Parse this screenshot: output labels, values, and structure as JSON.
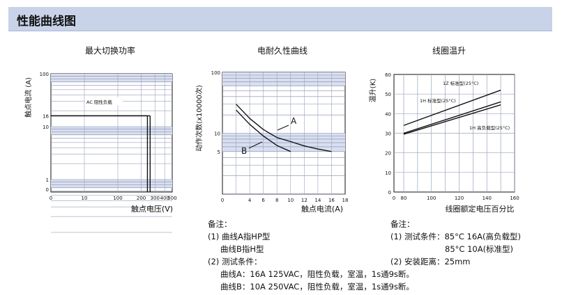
{
  "header": {
    "title": "性能曲线图"
  },
  "chart_data": [
    {
      "type": "line",
      "title": "最大切换功率",
      "xlabel": "触点电压(V)",
      "ylabel": "触点电流 (A)",
      "x_scale": "log",
      "y_scale": "log",
      "xlim": [
        0,
        500
      ],
      "ylim": [
        0,
        100
      ],
      "x_ticks": [
        "0",
        "10",
        "100",
        "200",
        "300",
        "400",
        "500"
      ],
      "y_ticks": [
        "100",
        "16",
        "10",
        "1"
      ],
      "annotation": "AC 阻性负载",
      "series": [
        {
          "points": [
            [
              0,
              16
            ],
            [
              240,
              16
            ],
            [
              240,
              0
            ]
          ]
        },
        {
          "points": [
            [
              240,
              0
            ],
            [
              240,
              16
            ]
          ]
        },
        {
          "points": [
            [
              260,
              0
            ],
            [
              260,
              16
            ]
          ]
        }
      ]
    },
    {
      "type": "line",
      "title": "电耐久性曲线",
      "xlabel": "触点电流(A)",
      "ylabel": "动作次数(x10000次)",
      "y_scale": "log",
      "xlim": [
        0,
        18
      ],
      "ylim": [
        1,
        100
      ],
      "x_ticks": [
        "0",
        "4",
        "6",
        "8",
        "10",
        "12",
        "14",
        "16",
        "18"
      ],
      "y_ticks": [
        "100",
        "10",
        "5"
      ],
      "series": [
        {
          "name": "A",
          "x": [
            2,
            4,
            6,
            8,
            10,
            12,
            14,
            16
          ],
          "y": [
            30,
            17.5,
            11.5,
            8.5,
            7.3,
            6.2,
            5.5,
            5
          ]
        },
        {
          "name": "B",
          "x": [
            2,
            4,
            6,
            8,
            10
          ],
          "y": [
            24,
            14,
            9,
            6.3,
            5
          ]
        }
      ],
      "labels": [
        "A",
        "B"
      ]
    },
    {
      "type": "line",
      "title": "线圈温升",
      "xlabel": "线圈额定电压百分比",
      "ylabel": "温升(K)",
      "xlim": [
        0,
        160
      ],
      "ylim": [
        0,
        60
      ],
      "x_ticks": [
        "0",
        "80",
        "100",
        "120",
        "140",
        "160"
      ],
      "y_ticks": [
        "60",
        "50",
        "40",
        "30",
        "20",
        "10",
        "0"
      ],
      "series": [
        {
          "name": "1Z 标准型(25°C)",
          "x": [
            80,
            150
          ],
          "y": [
            34,
            52
          ]
        },
        {
          "name": "1H 标准型(25°C)",
          "x": [
            80,
            150
          ],
          "y": [
            30,
            46
          ]
        },
        {
          "name": "1H 高负载型(25°C)",
          "x": [
            80,
            150
          ],
          "y": [
            29.5,
            44.5
          ]
        }
      ]
    }
  ],
  "notes_left": {
    "title": "备注：",
    "lines": [
      "(1) 曲线A指HP型",
      "     曲线B指H型",
      "(2) 测试条件：",
      "     曲线A：16A 125VAC，阻性负载，室温，1s通9s断。",
      "     曲线B：10A 250VAC，阻性负载，室温，1s通9s断。"
    ]
  },
  "notes_right": {
    "title": "备注：",
    "lines": [
      "(1) 测试条件：85°C 16A(高负载型)",
      "                          85°C 10A(标准型)",
      "(2) 安装距离：25mm"
    ]
  }
}
